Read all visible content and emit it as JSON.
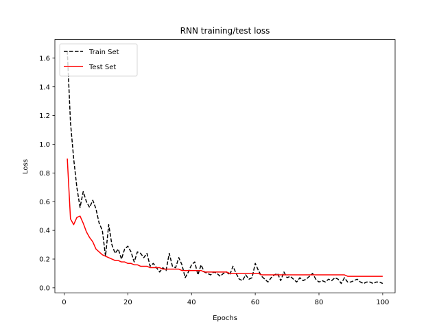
{
  "chart_data": {
    "type": "line",
    "title": "RNN training/test loss",
    "xlabel": "Epochs",
    "ylabel": "Loss",
    "xlim": [
      -2.9,
      103.9
    ],
    "ylim": [
      -0.035,
      1.73
    ],
    "xticks": [
      0,
      20,
      40,
      60,
      80,
      100
    ],
    "yticks": [
      0.0,
      0.2,
      0.4,
      0.6,
      0.8,
      1.0,
      1.2,
      1.4,
      1.6
    ],
    "ytick_labels": [
      "0.0",
      "0.2",
      "0.4",
      "0.6",
      "0.8",
      "1.0",
      "1.2",
      "1.4",
      "1.6"
    ],
    "legend_position": "top-left",
    "grid": false,
    "x": [
      1,
      2,
      3,
      4,
      5,
      6,
      7,
      8,
      9,
      10,
      11,
      12,
      13,
      14,
      15,
      16,
      17,
      18,
      19,
      20,
      21,
      22,
      23,
      24,
      25,
      26,
      27,
      28,
      29,
      30,
      31,
      32,
      33,
      34,
      35,
      36,
      37,
      38,
      39,
      40,
      41,
      42,
      43,
      44,
      45,
      46,
      47,
      48,
      49,
      50,
      51,
      52,
      53,
      54,
      55,
      56,
      57,
      58,
      59,
      60,
      61,
      62,
      63,
      64,
      65,
      66,
      67,
      68,
      69,
      70,
      71,
      72,
      73,
      74,
      75,
      76,
      77,
      78,
      79,
      80,
      81,
      82,
      83,
      84,
      85,
      86,
      87,
      88,
      89,
      90,
      91,
      92,
      93,
      94,
      95,
      96,
      97,
      98,
      99,
      100
    ],
    "series": [
      {
        "name": "Train Set",
        "color": "#000000",
        "style": "dashed",
        "values": [
          1.65,
          1.15,
          0.9,
          0.7,
          0.56,
          0.67,
          0.6,
          0.56,
          0.61,
          0.55,
          0.45,
          0.4,
          0.22,
          0.44,
          0.3,
          0.24,
          0.27,
          0.2,
          0.27,
          0.29,
          0.25,
          0.18,
          0.25,
          0.24,
          0.21,
          0.24,
          0.15,
          0.17,
          0.14,
          0.11,
          0.14,
          0.12,
          0.24,
          0.15,
          0.14,
          0.21,
          0.16,
          0.07,
          0.11,
          0.16,
          0.18,
          0.09,
          0.16,
          0.11,
          0.1,
          0.09,
          0.11,
          0.1,
          0.08,
          0.1,
          0.11,
          0.09,
          0.15,
          0.1,
          0.06,
          0.05,
          0.09,
          0.06,
          0.07,
          0.17,
          0.12,
          0.08,
          0.06,
          0.04,
          0.07,
          0.09,
          0.1,
          0.05,
          0.11,
          0.07,
          0.08,
          0.06,
          0.04,
          0.07,
          0.05,
          0.06,
          0.08,
          0.1,
          0.06,
          0.04,
          0.05,
          0.04,
          0.06,
          0.05,
          0.07,
          0.06,
          0.03,
          0.07,
          0.04,
          0.04,
          0.05,
          0.06,
          0.04,
          0.03,
          0.04,
          0.04,
          0.03,
          0.04,
          0.04,
          0.03
        ]
      },
      {
        "name": "Test Set",
        "color": "#ff0000",
        "style": "solid",
        "values": [
          0.9,
          0.48,
          0.44,
          0.49,
          0.5,
          0.45,
          0.39,
          0.35,
          0.32,
          0.27,
          0.25,
          0.23,
          0.22,
          0.21,
          0.2,
          0.19,
          0.19,
          0.18,
          0.18,
          0.17,
          0.17,
          0.16,
          0.16,
          0.15,
          0.15,
          0.15,
          0.14,
          0.14,
          0.14,
          0.14,
          0.13,
          0.13,
          0.13,
          0.13,
          0.13,
          0.13,
          0.12,
          0.12,
          0.12,
          0.12,
          0.12,
          0.12,
          0.12,
          0.11,
          0.11,
          0.11,
          0.11,
          0.11,
          0.11,
          0.11,
          0.11,
          0.1,
          0.1,
          0.1,
          0.1,
          0.1,
          0.1,
          0.1,
          0.1,
          0.1,
          0.1,
          0.09,
          0.09,
          0.09,
          0.09,
          0.09,
          0.09,
          0.09,
          0.09,
          0.09,
          0.09,
          0.09,
          0.09,
          0.09,
          0.09,
          0.09,
          0.09,
          0.09,
          0.09,
          0.09,
          0.09,
          0.09,
          0.09,
          0.09,
          0.09,
          0.09,
          0.09,
          0.09,
          0.08,
          0.08,
          0.08,
          0.08,
          0.08,
          0.08,
          0.08,
          0.08,
          0.08,
          0.08,
          0.08,
          0.08
        ]
      }
    ]
  }
}
